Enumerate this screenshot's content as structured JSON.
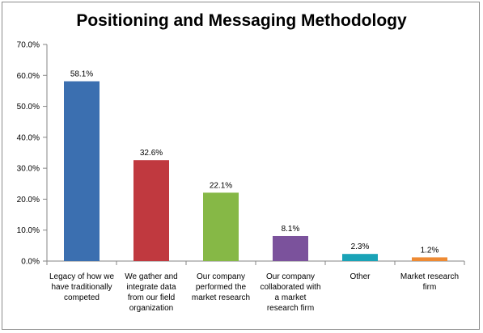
{
  "chart_data": {
    "type": "bar",
    "title": "Positioning and Messaging Methodology",
    "xlabel": "",
    "ylabel": "",
    "ylim": [
      0,
      70
    ],
    "yticks": [
      "0.0%",
      "10.0%",
      "20.0%",
      "30.0%",
      "40.0%",
      "50.0%",
      "60.0%",
      "70.0%"
    ],
    "grid": false,
    "categories": [
      "Legacy of how we have traditionally competed",
      "We gather and integrate data from our field organization",
      "Our company performed the market research",
      "Our company collaborated with a market research firm",
      "Other",
      "Market research firm"
    ],
    "category_lines": [
      [
        "Legacy of how we",
        "have traditionally",
        "competed"
      ],
      [
        "We gather and",
        "integrate data",
        "from our field",
        "organization"
      ],
      [
        "Our company",
        "performed the",
        "market research"
      ],
      [
        "Our company",
        "collaborated with",
        "a market",
        "research firm"
      ],
      [
        "Other"
      ],
      [
        "Market research",
        "firm"
      ]
    ],
    "values": [
      58.1,
      32.6,
      22.1,
      8.1,
      2.3,
      1.2
    ],
    "data_labels": [
      "58.1%",
      "32.6%",
      "22.1%",
      "8.1%",
      "2.3%",
      "1.2%"
    ],
    "colors": [
      "#3b6fb0",
      "#c0393f",
      "#86b846",
      "#7b529c",
      "#1aa3b7",
      "#ee8a33"
    ]
  }
}
